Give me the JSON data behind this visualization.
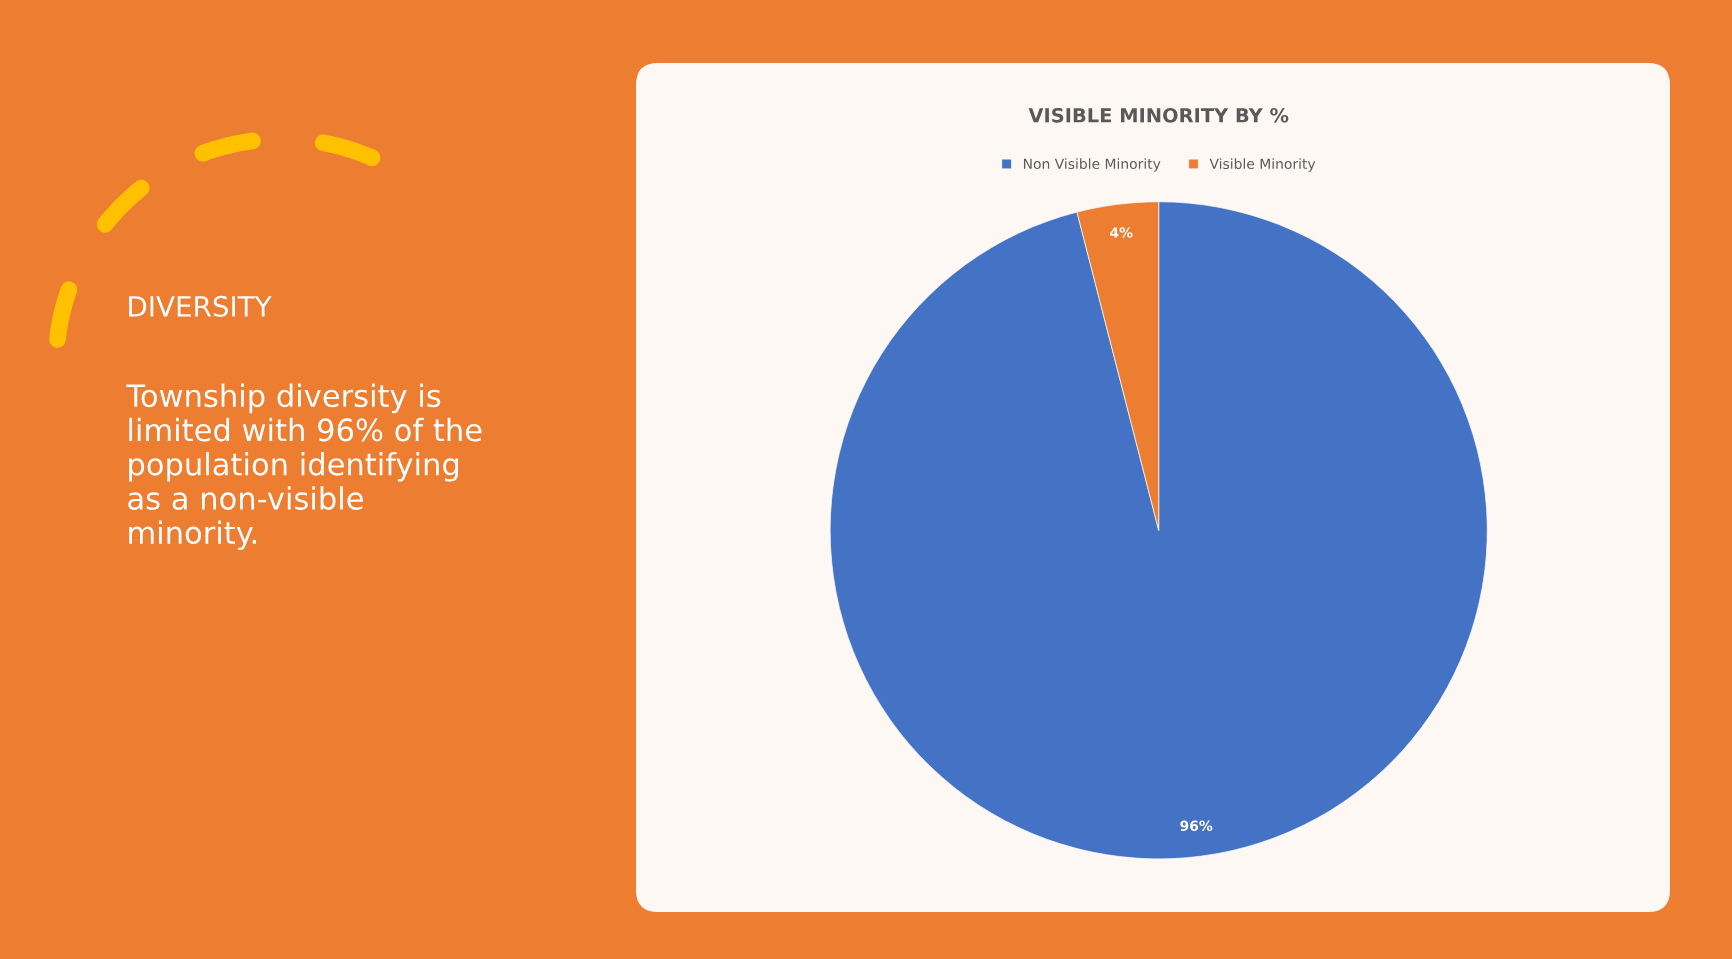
{
  "chart_data": {
    "type": "pie",
    "title": "VISIBLE MINORITY BY %",
    "categories": [
      "Non Visible Minority",
      "Visible Minority"
    ],
    "values": [
      96,
      4
    ],
    "colors": [
      "#4472c4",
      "#ed7d31"
    ],
    "value_labels": [
      "96%",
      "4%"
    ],
    "legend": "top",
    "annotations": [
      "DIVERSITY",
      "Township diversity is limited with 96% of the population identifying as a non-visible minority."
    ]
  }
}
